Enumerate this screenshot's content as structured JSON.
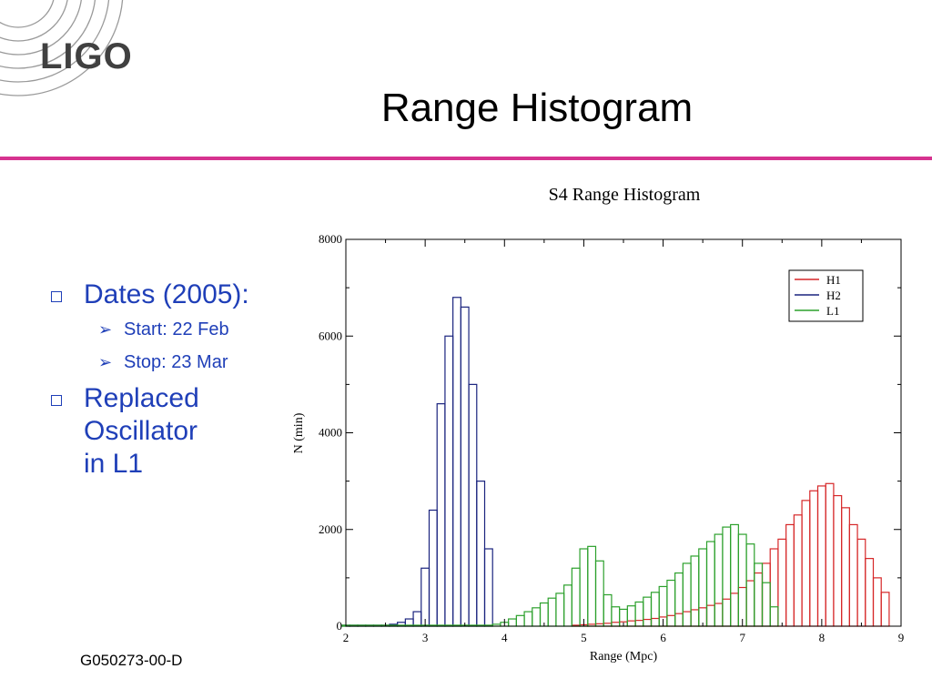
{
  "logo": {
    "text": "LIGO"
  },
  "slide": {
    "title": "Range Histogram",
    "footer": "G050273-00-D"
  },
  "bullets": {
    "dates_label": "Dates (2005):",
    "start": "Start: 22 Feb",
    "stop": "Stop: 23 Mar",
    "replaced_line1": "Replaced",
    "replaced_line2": "Oscillator",
    "replaced_line3": "in L1"
  },
  "colors": {
    "accent_rule": "#d6338f",
    "bullet_text": "#1f3fb8",
    "H1": "#d62728",
    "H2": "#1a237e",
    "L1": "#2ca02c"
  },
  "chart_data": {
    "type": "bar",
    "title": "S4 Range Histogram",
    "xlabel": "Range (Mpc)",
    "ylabel": "N (min)",
    "xlim": [
      2,
      9
    ],
    "ylim": [
      0,
      8000
    ],
    "xticks": [
      2,
      3,
      4,
      5,
      6,
      7,
      8,
      9
    ],
    "yticks": [
      0,
      2000,
      4000,
      6000,
      8000
    ],
    "bin_width": 0.1,
    "legend_position": "top-right",
    "grid": false,
    "series": [
      {
        "name": "H1",
        "color": "#d62728",
        "x": [
          4.9,
          5.0,
          5.1,
          5.2,
          5.3,
          5.4,
          5.5,
          5.6,
          5.7,
          5.8,
          5.9,
          6.0,
          6.1,
          6.2,
          6.3,
          6.4,
          6.5,
          6.6,
          6.7,
          6.8,
          6.9,
          7.0,
          7.1,
          7.2,
          7.3,
          7.4,
          7.5,
          7.6,
          7.7,
          7.8,
          7.9,
          8.0,
          8.1,
          8.2,
          8.3,
          8.4,
          8.5,
          8.6,
          8.7,
          8.8
        ],
        "values": [
          20,
          30,
          40,
          50,
          60,
          80,
          90,
          110,
          120,
          140,
          160,
          190,
          220,
          260,
          300,
          340,
          380,
          430,
          470,
          560,
          680,
          800,
          940,
          1100,
          1300,
          1600,
          1800,
          2100,
          2300,
          2600,
          2800,
          2900,
          2950,
          2700,
          2450,
          2100,
          1800,
          1400,
          1000,
          700
        ]
      },
      {
        "name": "H2",
        "color": "#1a237e",
        "x": [
          2.0,
          2.1,
          2.2,
          2.3,
          2.4,
          2.5,
          2.6,
          2.7,
          2.8,
          2.9,
          3.0,
          3.1,
          3.2,
          3.3,
          3.4,
          3.5,
          3.6,
          3.7,
          3.8
        ],
        "values": [
          20,
          20,
          20,
          20,
          20,
          20,
          40,
          80,
          150,
          300,
          1200,
          2400,
          4600,
          6000,
          6800,
          6600,
          5000,
          3000,
          1600
        ]
      },
      {
        "name": "L1",
        "color": "#2ca02c",
        "x": [
          2.0,
          2.1,
          2.2,
          2.3,
          2.4,
          2.5,
          2.6,
          2.7,
          2.8,
          2.9,
          3.0,
          3.1,
          3.2,
          3.3,
          3.4,
          3.5,
          3.6,
          3.7,
          3.8,
          3.9,
          4.0,
          4.1,
          4.2,
          4.3,
          4.4,
          4.5,
          4.6,
          4.7,
          4.8,
          4.9,
          5.0,
          5.1,
          5.2,
          5.3,
          5.4,
          5.5,
          5.6,
          5.7,
          5.8,
          5.9,
          6.0,
          6.1,
          6.2,
          6.3,
          6.4,
          6.5,
          6.6,
          6.7,
          6.8,
          6.9,
          7.0,
          7.1,
          7.2,
          7.3,
          7.4
        ],
        "values": [
          20,
          20,
          20,
          20,
          20,
          20,
          20,
          20,
          20,
          20,
          20,
          20,
          20,
          20,
          20,
          20,
          20,
          20,
          20,
          40,
          80,
          150,
          220,
          300,
          380,
          480,
          580,
          680,
          850,
          1200,
          1600,
          1650,
          1350,
          650,
          400,
          350,
          420,
          500,
          600,
          700,
          820,
          950,
          1100,
          1300,
          1450,
          1600,
          1750,
          1900,
          2050,
          2100,
          1900,
          1700,
          1300,
          900,
          400
        ]
      }
    ]
  }
}
